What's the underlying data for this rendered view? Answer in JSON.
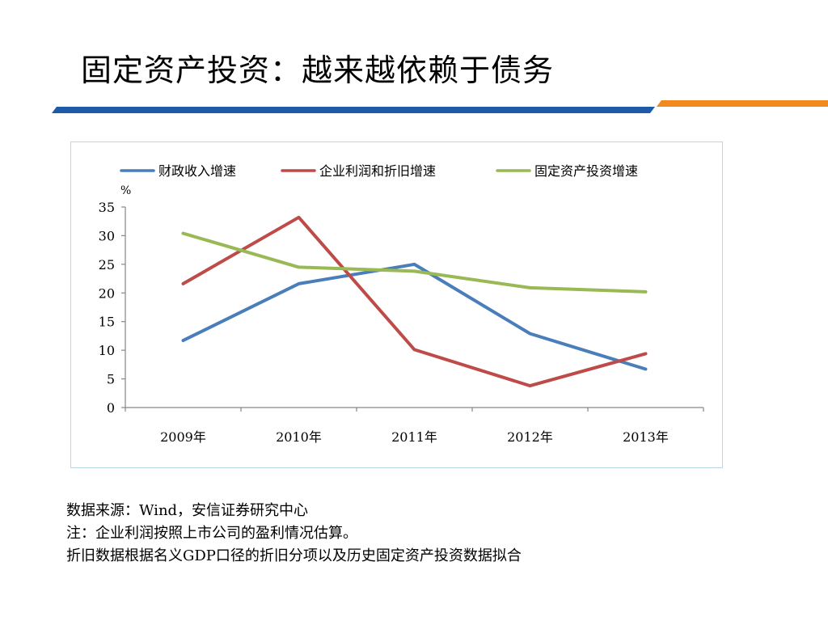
{
  "slide": {
    "title": "固定资产投资：越来越依赖于债务"
  },
  "colors": {
    "rule_blue": "#1d5aa8",
    "rule_orange": "#f08a1c",
    "frame_border": "#b9d8e6"
  },
  "chart_data": {
    "type": "line",
    "title": "",
    "xlabel": "",
    "ylabel": "%",
    "categories": [
      "2009年",
      "2010年",
      "2011年",
      "2012年",
      "2013年"
    ],
    "ylim": [
      0,
      35
    ],
    "yticks": [
      0,
      5,
      10,
      15,
      20,
      25,
      30,
      35
    ],
    "grid": false,
    "legend": "top",
    "series": [
      {
        "name": "财政收入增速",
        "color": "#4a7ebb",
        "values": [
          11.7,
          21.6,
          25.0,
          12.9,
          6.7
        ]
      },
      {
        "name": "企业利润和折旧增速",
        "color": "#be4b48",
        "values": [
          21.6,
          33.2,
          10.1,
          3.8,
          9.4
        ]
      },
      {
        "name": "固定资产投资增速",
        "color": "#98b954",
        "values": [
          30.4,
          24.5,
          23.8,
          20.9,
          20.2
        ]
      }
    ]
  },
  "notes": {
    "line1": "数据来源：Wind，安信证券研究中心",
    "line2": "注：企业利润按照上市公司的盈利情况估算。",
    "line3": "折旧数据根据名义GDP口径的折旧分项以及历史固定资产投资数据拟合"
  }
}
